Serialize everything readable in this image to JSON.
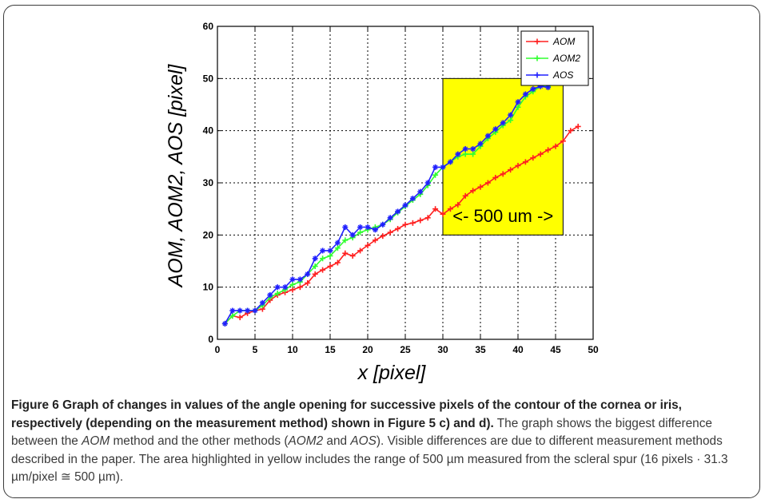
{
  "chart_data": {
    "type": "line",
    "xlabel": "x [pixel]",
    "ylabel": "AOM, AOM2, AOS [pixel]",
    "xlim": [
      0,
      50
    ],
    "ylim": [
      0,
      60
    ],
    "xticks": [
      0,
      5,
      10,
      15,
      20,
      25,
      30,
      35,
      40,
      45,
      50
    ],
    "yticks": [
      0,
      10,
      20,
      30,
      40,
      50,
      60
    ],
    "grid": true,
    "legend_position": "top-right",
    "highlight": {
      "x": [
        30,
        46
      ],
      "y": [
        20,
        50
      ],
      "color": "#ffff00",
      "label": "<-  500 um  ->"
    },
    "series": [
      {
        "name": "AOM",
        "color": "#ff2020",
        "x": [
          1,
          2,
          3,
          4,
          5,
          6,
          7,
          8,
          9,
          10,
          11,
          12,
          13,
          14,
          15,
          16,
          17,
          18,
          19,
          20,
          21,
          22,
          23,
          24,
          25,
          26,
          27,
          28,
          29,
          30,
          31,
          32,
          33,
          34,
          35,
          36,
          37,
          38,
          39,
          40,
          41,
          42,
          43,
          44,
          45,
          46,
          47,
          48
        ],
        "y": [
          3,
          4.5,
          4.2,
          5,
          5.5,
          5.8,
          7.5,
          8.5,
          9,
          9.5,
          10,
          10.8,
          12.5,
          13.3,
          14,
          14.7,
          16.5,
          16,
          17,
          18,
          19,
          19.8,
          20.5,
          21.2,
          22,
          22.3,
          22.8,
          23.3,
          25,
          24,
          25,
          25.8,
          27.5,
          28.5,
          29.2,
          30,
          31,
          31.7,
          32.5,
          33.3,
          34,
          34.8,
          35.5,
          36.3,
          37,
          38,
          40,
          40.8
        ]
      },
      {
        "name": "AOM2",
        "color": "#30ff30",
        "x": [
          1,
          2,
          3,
          4,
          5,
          6,
          7,
          8,
          9,
          10,
          11,
          12,
          13,
          14,
          15,
          16,
          17,
          18,
          19,
          20,
          21,
          22,
          23,
          24,
          25,
          26,
          27,
          28,
          29,
          30,
          31,
          32,
          33,
          34,
          35,
          36,
          37,
          38,
          39,
          40,
          41,
          42,
          43,
          44
        ],
        "y": [
          3,
          4.5,
          5.5,
          5.5,
          5.5,
          6.5,
          8,
          8.8,
          9.5,
          10.5,
          11,
          12.5,
          14,
          15.5,
          16,
          17.5,
          19,
          19.5,
          20.5,
          21,
          21.5,
          22,
          23,
          24.3,
          25.5,
          26.7,
          27.8,
          29.5,
          31.5,
          33,
          34,
          35,
          35.5,
          35.5,
          37,
          38.5,
          39.7,
          41,
          42,
          44.5,
          46.5,
          47.5,
          48.5,
          48.5
        ]
      },
      {
        "name": "AOS",
        "color": "#2020ff",
        "x": [
          1,
          2,
          3,
          4,
          5,
          6,
          7,
          8,
          9,
          10,
          11,
          12,
          13,
          14,
          15,
          16,
          17,
          18,
          19,
          20,
          21,
          22,
          23,
          24,
          25,
          26,
          27,
          28,
          29,
          30,
          31,
          32,
          33,
          34,
          35,
          36,
          37,
          38,
          39,
          40,
          41,
          42,
          43,
          44
        ],
        "y": [
          3,
          5.5,
          5.5,
          5.5,
          5.5,
          7,
          8.5,
          10,
          10,
          11.5,
          11.5,
          12.5,
          15.5,
          17,
          17,
          18.5,
          21.5,
          20,
          21.5,
          21.5,
          21,
          22,
          23.3,
          24.5,
          25.7,
          27,
          28.3,
          30,
          33,
          33,
          34,
          35.5,
          36.5,
          36.5,
          37.5,
          39,
          40.3,
          41.5,
          43,
          45.5,
          47,
          48,
          48.5,
          48.3
        ]
      }
    ]
  },
  "caption": {
    "bold_text": "Figure 6 Graph of changes in values of the angle opening for successive pixels of the contour of the cornea or iris, respectively (depending on the measurement method) shown in Figure 5 c) and d).",
    "text_1": " The graph shows the biggest difference between the ",
    "aom": "AOM",
    "text_2": " method and the other methods (",
    "aom2": "AOM2",
    "text_3": " and ",
    "aos": "AOS",
    "text_4": "). Visible differences are due to different measurement methods described in the paper. The area highlighted in yellow includes the range of 500 µm measured from the scleral spur (16 pixels · 31.3 µm/pixel ≅ 500 µm)."
  }
}
